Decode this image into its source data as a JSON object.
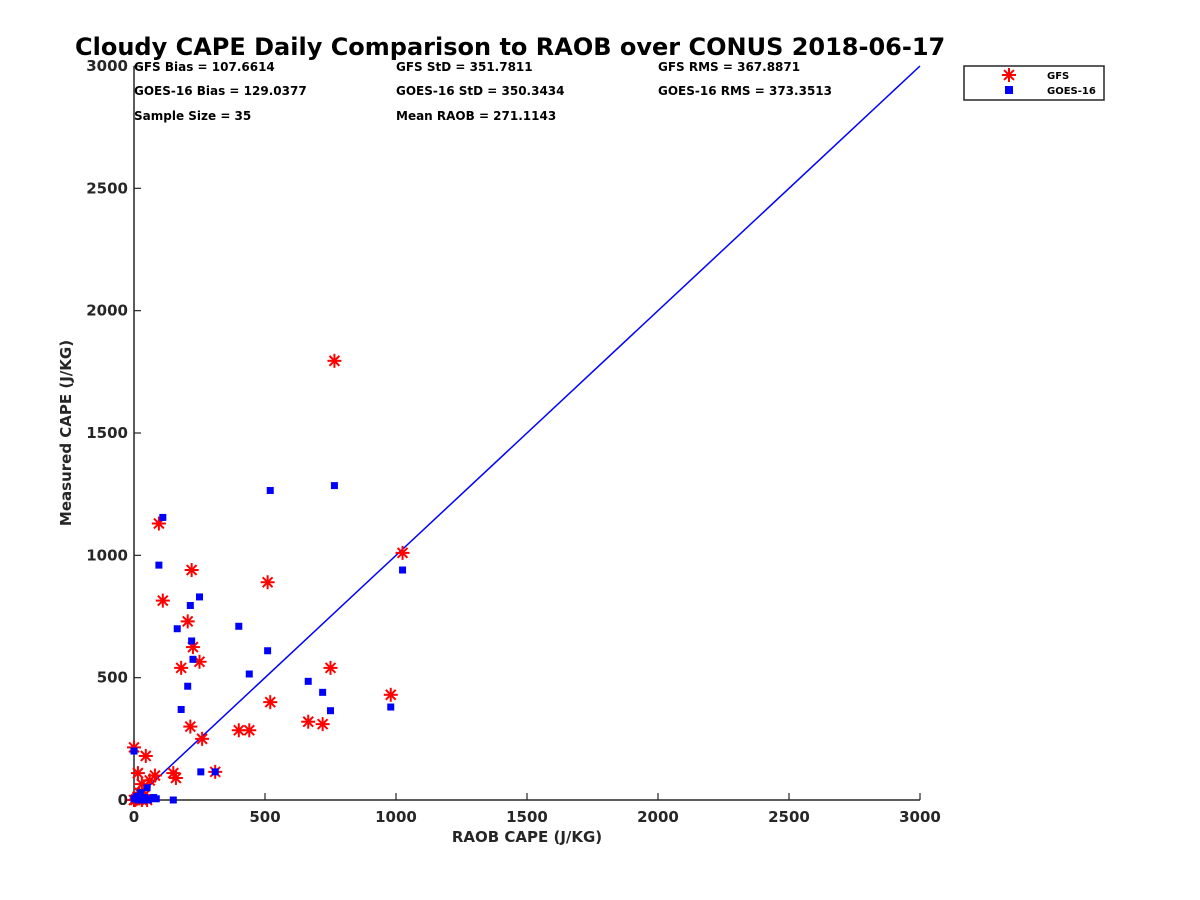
{
  "chart_data": {
    "type": "scatter",
    "title": "Cloudy CAPE Daily Comparison to RAOB over CONUS 2018-06-17",
    "xlabel": "RAOB CAPE (J/KG)",
    "ylabel": "Measured CAPE (J/KG)",
    "xlim": [
      0,
      3000
    ],
    "ylim": [
      0,
      3000
    ],
    "xticks": [
      "0",
      "500",
      "1000",
      "1500",
      "2000",
      "2500",
      "3000"
    ],
    "yticks": [
      "0",
      "500",
      "1000",
      "1500",
      "2000",
      "2500",
      "3000"
    ],
    "grid": false,
    "legend_position": "outside-top-right",
    "colors": {
      "gfs": "#ff0000",
      "goes": "#0000ff",
      "line": "#0000ff"
    },
    "stats": {
      "gfs_bias": "GFS Bias = 107.6614",
      "goes_bias": "GOES-16 Bias = 129.0377",
      "sample_size": "Sample Size = 35",
      "gfs_std": "GFS StD = 351.7811",
      "goes_std": "GOES-16 StD = 350.3434",
      "mean_raob": "Mean RAOB = 271.1143",
      "gfs_rms": "GFS RMS = 367.8871",
      "goes_rms": "GOES-16 RMS = 373.3513"
    },
    "reference_line": {
      "x": [
        0,
        3000
      ],
      "y": [
        0,
        3000
      ]
    },
    "series": [
      {
        "name": "GFS",
        "marker": "asterisk",
        "points": [
          [
            0,
            215
          ],
          [
            0,
            0
          ],
          [
            10,
            5
          ],
          [
            15,
            110
          ],
          [
            30,
            65
          ],
          [
            40,
            20
          ],
          [
            45,
            180
          ],
          [
            50,
            0
          ],
          [
            60,
            80
          ],
          [
            80,
            100
          ],
          [
            95,
            1130
          ],
          [
            110,
            815
          ],
          [
            150,
            110
          ],
          [
            160,
            90
          ],
          [
            180,
            540
          ],
          [
            205,
            730
          ],
          [
            215,
            300
          ],
          [
            220,
            940
          ],
          [
            225,
            625
          ],
          [
            250,
            565
          ],
          [
            260,
            250
          ],
          [
            310,
            115
          ],
          [
            400,
            285
          ],
          [
            440,
            285
          ],
          [
            510,
            890
          ],
          [
            520,
            400
          ],
          [
            665,
            320
          ],
          [
            720,
            310
          ],
          [
            750,
            540
          ],
          [
            765,
            1795
          ],
          [
            980,
            430
          ],
          [
            1025,
            1010
          ],
          [
            5,
            0
          ],
          [
            30,
            0
          ],
          [
            20,
            30
          ]
        ]
      },
      {
        "name": "GOES-16",
        "marker": "square",
        "points": [
          [
            0,
            200
          ],
          [
            0,
            5
          ],
          [
            15,
            0
          ],
          [
            25,
            30
          ],
          [
            40,
            10
          ],
          [
            50,
            50
          ],
          [
            55,
            0
          ],
          [
            75,
            10
          ],
          [
            95,
            960
          ],
          [
            110,
            1155
          ],
          [
            150,
            0
          ],
          [
            165,
            700
          ],
          [
            180,
            370
          ],
          [
            205,
            465
          ],
          [
            215,
            795
          ],
          [
            220,
            650
          ],
          [
            225,
            575
          ],
          [
            250,
            830
          ],
          [
            255,
            115
          ],
          [
            310,
            115
          ],
          [
            400,
            710
          ],
          [
            440,
            515
          ],
          [
            510,
            610
          ],
          [
            520,
            1265
          ],
          [
            665,
            485
          ],
          [
            720,
            440
          ],
          [
            750,
            365
          ],
          [
            765,
            1285
          ],
          [
            980,
            380
          ],
          [
            1025,
            940
          ],
          [
            30,
            0
          ],
          [
            10,
            15
          ],
          [
            60,
            5
          ],
          [
            85,
            5
          ],
          [
            45,
            0
          ]
        ]
      }
    ]
  }
}
